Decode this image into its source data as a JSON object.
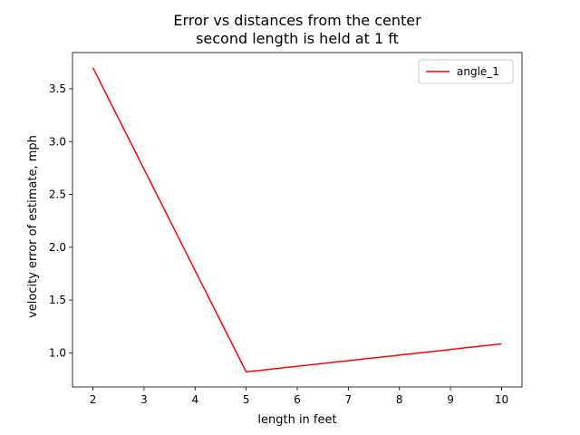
{
  "chart_data": {
    "type": "line",
    "title_line1": "Error vs distances from the center",
    "title_line2": "second length is held at 1 ft",
    "xlabel": "length in feet",
    "ylabel": "velocity error of estimate, mph",
    "xlim": [
      1.6,
      10.4
    ],
    "ylim": [
      0.677,
      3.843
    ],
    "xticks": [
      2,
      3,
      4,
      5,
      6,
      7,
      8,
      9,
      10
    ],
    "xtick_labels": [
      "2",
      "3",
      "4",
      "5",
      "6",
      "7",
      "8",
      "9",
      "10"
    ],
    "yticks": [
      1.0,
      1.5,
      2.0,
      2.5,
      3.0,
      3.5
    ],
    "ytick_labels": [
      "1.0",
      "1.5",
      "2.0",
      "2.5",
      "3.0",
      "3.5"
    ],
    "grid": false,
    "legend_position": "upper right",
    "series": [
      {
        "name": "angle_1",
        "color": "#ff0000",
        "x": [
          2,
          5,
          10
        ],
        "y": [
          3.7,
          0.82,
          1.085
        ]
      }
    ]
  }
}
